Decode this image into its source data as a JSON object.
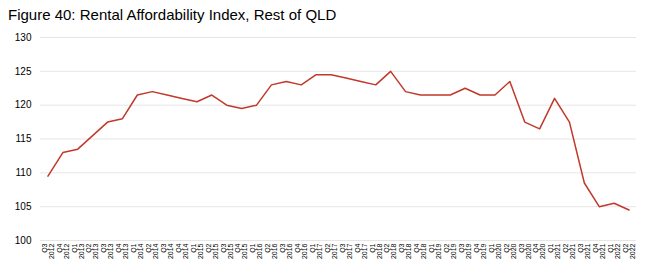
{
  "chart_data": {
    "type": "line",
    "title": "Figure 40: Rental Affordability Index, Rest of QLD",
    "categories": [
      "Q3\n2012",
      "Q4\n2012",
      "Q1\n2013",
      "Q2\n2013",
      "Q3\n2013",
      "Q4\n2013",
      "Q1\n2014",
      "Q2\n2014",
      "Q3\n2014",
      "Q4\n2014",
      "Q1\n2015",
      "Q2\n2015",
      "Q3\n2015",
      "Q4\n2015",
      "Q1\n2016",
      "Q2\n2016",
      "Q3\n2016",
      "Q4\n2016",
      "Q1\n2017",
      "Q2\n2017",
      "Q3\n2017",
      "Q4\n2017",
      "Q1\n2018",
      "Q2\n2018",
      "Q3\n2018",
      "Q4\n2018",
      "Q1\n2019",
      "Q2\n2019",
      "Q3\n2019",
      "Q4\n2019",
      "Q1\n2020",
      "Q2\n2020",
      "Q3\n2020",
      "Q4\n2020",
      "Q1\n2021",
      "Q2\n2021",
      "Q3\n2021",
      "Q4\n2021",
      "Q1\n2022",
      "Q2\n2022"
    ],
    "values": [
      109.5,
      113.0,
      113.5,
      115.5,
      117.5,
      118.0,
      121.5,
      122.0,
      121.5,
      121.0,
      120.5,
      121.5,
      120.0,
      119.5,
      120.0,
      123.0,
      123.5,
      123.0,
      124.5,
      124.5,
      124.0,
      123.5,
      123.0,
      125.0,
      122.0,
      121.5,
      121.5,
      121.5,
      122.5,
      121.5,
      121.5,
      123.5,
      117.5,
      116.5,
      121.0,
      117.5,
      108.5,
      105.0,
      105.5,
      104.5
    ],
    "color": "#c0392b",
    "ylim": [
      100,
      130
    ],
    "yticks": [
      100,
      105,
      110,
      115,
      120,
      125,
      130
    ],
    "grid": true
  }
}
